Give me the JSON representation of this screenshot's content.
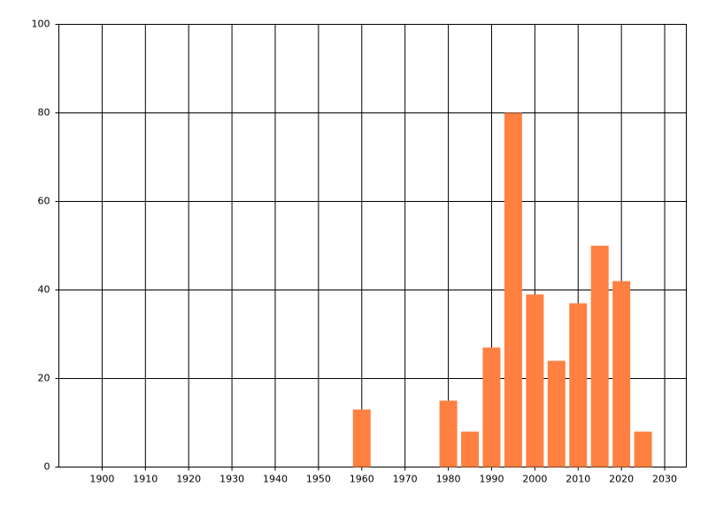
{
  "chart_data": {
    "type": "bar",
    "x": [
      1960,
      1980,
      1985,
      1990,
      1995,
      2000,
      2005,
      2010,
      2015,
      2020,
      2025
    ],
    "values": [
      13,
      15,
      8,
      27,
      80,
      39,
      24,
      37,
      50,
      42,
      8
    ],
    "color": "#ff8040",
    "xlim": [
      1890,
      2035
    ],
    "xticks": [
      1900,
      1910,
      1920,
      1930,
      1940,
      1950,
      1960,
      1970,
      1980,
      1990,
      2000,
      2010,
      2020,
      2030
    ],
    "ylim": [
      0,
      100
    ],
    "yticks": [
      0,
      20,
      40,
      60,
      80,
      100
    ],
    "grid": true
  }
}
